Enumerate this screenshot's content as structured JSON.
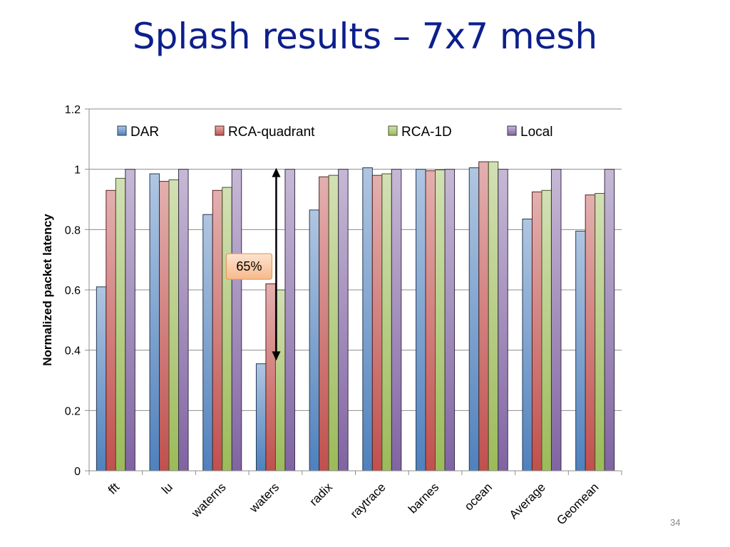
{
  "slide": {
    "title": "Splash results – 7x7 mesh",
    "page_number": "34"
  },
  "chart_data": {
    "type": "bar",
    "title": "",
    "xlabel": "",
    "ylabel": "Normalized packet latency",
    "ylim": [
      0,
      1.2
    ],
    "yticks": [
      0,
      0.2,
      0.4,
      0.6,
      0.8,
      1,
      1.2
    ],
    "ytick_labels": [
      "0",
      "0.2",
      "0.4",
      "0.6",
      "0.8",
      "1",
      "1.2"
    ],
    "grid": true,
    "legend_position": "top",
    "categories": [
      "fft",
      "lu",
      "waterns",
      "waters",
      "radix",
      "raytrace",
      "barnes",
      "ocean",
      "Average",
      "Geomean"
    ],
    "series": [
      {
        "name": "DAR",
        "color": "#4f81bd",
        "values": [
          0.61,
          0.985,
          0.85,
          0.355,
          0.865,
          1.005,
          1.0,
          1.005,
          0.835,
          0.795
        ]
      },
      {
        "name": "RCA-quadrant",
        "color": "#c0504d",
        "values": [
          0.93,
          0.96,
          0.93,
          0.62,
          0.975,
          0.98,
          0.995,
          1.025,
          0.925,
          0.915
        ]
      },
      {
        "name": "RCA-1D",
        "color": "#9bbb59",
        "values": [
          0.97,
          0.965,
          0.94,
          0.6,
          0.98,
          0.985,
          0.998,
          1.025,
          0.93,
          0.92
        ]
      },
      {
        "name": "Local",
        "color": "#8064a2",
        "values": [
          1,
          1,
          1,
          1,
          1,
          1,
          1,
          1,
          1,
          1
        ]
      }
    ],
    "annotations": [
      {
        "text": "65%",
        "category": "waters",
        "arrow_from": 1.0,
        "arrow_to": 0.37
      }
    ]
  }
}
